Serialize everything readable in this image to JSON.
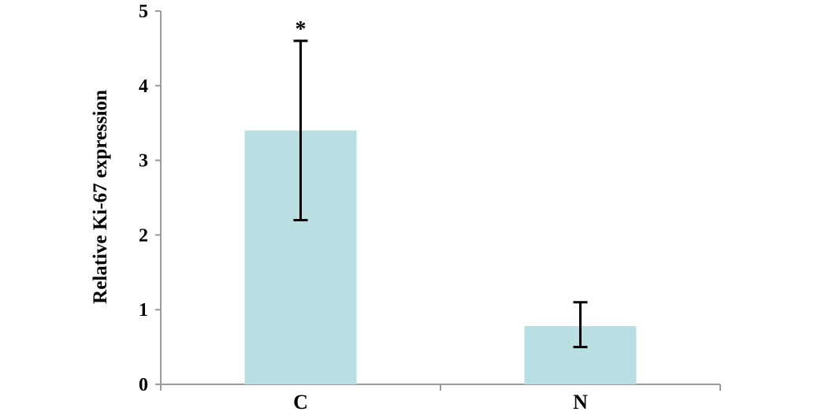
{
  "chart_data": {
    "type": "bar",
    "title": "",
    "xlabel": "",
    "ylabel": "Relative Ki-67 expression",
    "categories": [
      "C",
      "N"
    ],
    "values": [
      3.4,
      0.78
    ],
    "error_low": [
      2.2,
      0.5
    ],
    "error_high": [
      4.6,
      1.1
    ],
    "annotations": [
      "*",
      ""
    ],
    "ylim": [
      0,
      5
    ],
    "yticks": [
      "0",
      "1",
      "2",
      "3",
      "4",
      "5"
    ],
    "grid": false,
    "legend": "none",
    "colors": {
      "bar": "#b9dfe3",
      "axis": "#9a9a9a",
      "error_bar": "#000000"
    }
  }
}
